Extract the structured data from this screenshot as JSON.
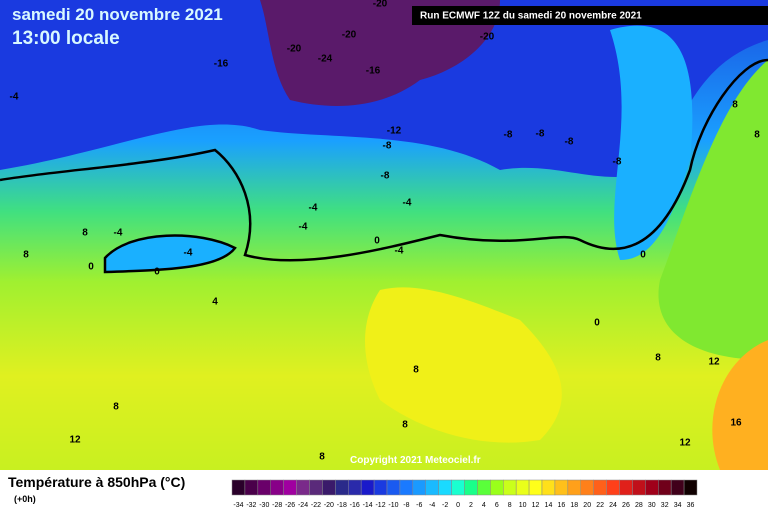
{
  "header": {
    "date": "samedi 20 novembre 2021",
    "time": "13:00 locale",
    "run": "Run ECMWF 12Z du samedi 20 novembre 2021"
  },
  "copyright": "Copyright 2021 Meteociel.fr",
  "legend": {
    "title": "Température à 850hPa (°C)",
    "step": "(+0h)",
    "ticks": [
      -34,
      -32,
      -30,
      -28,
      -26,
      -24,
      -22,
      -20,
      -18,
      -16,
      -14,
      -12,
      -10,
      -8,
      -6,
      -4,
      -2,
      0,
      2,
      4,
      6,
      8,
      10,
      12,
      14,
      16,
      18,
      20,
      22,
      24,
      26,
      28,
      30,
      32,
      34,
      36
    ],
    "colors": [
      "#2a002a",
      "#4a004a",
      "#6a006a",
      "#880088",
      "#a000a0",
      "#7a2a8a",
      "#5a2a7a",
      "#3a1a6a",
      "#2a2a8a",
      "#2a2aaa",
      "#1a1aca",
      "#1a3ae0",
      "#1a5af0",
      "#1a7aff",
      "#1a9aff",
      "#1abaff",
      "#1adaff",
      "#1affd0",
      "#1aff8a",
      "#5aff3a",
      "#9aff1a",
      "#caff1a",
      "#eaff1a",
      "#ffff1a",
      "#ffe01a",
      "#ffc01a",
      "#ffa01a",
      "#ff801a",
      "#ff601a",
      "#ff401a",
      "#e0201a",
      "#c0101a",
      "#a0001a",
      "#70001a",
      "#40001a",
      "#100000"
    ]
  },
  "contour_labels": [
    "-20",
    "-20",
    "-20",
    "-20",
    "-24",
    "-16",
    "-16",
    "-4",
    "-12",
    "-8",
    "-8",
    "-8",
    "-8",
    "-8",
    "-8",
    "-4",
    "-4",
    "-4",
    "0",
    "-4",
    "0",
    "0",
    "8",
    "-4",
    "8",
    "-4",
    "4",
    "0",
    "8",
    "8",
    "0",
    "8",
    "8",
    "12",
    "8",
    "12",
    "16",
    "12",
    "8",
    "8"
  ]
}
